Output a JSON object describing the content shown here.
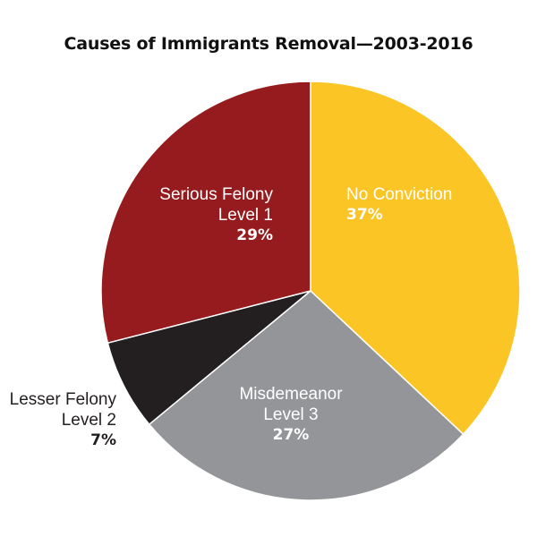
{
  "chart_data": {
    "type": "pie",
    "title": "Causes of Immigrants Removal—2003-2016",
    "slices": [
      {
        "label_lines": [
          "No Conviction"
        ],
        "value": 37,
        "value_label": "37%",
        "color": "#fcc526",
        "text_color": "#ffffff"
      },
      {
        "label_lines": [
          "Misdemeanor",
          "Level 3"
        ],
        "value": 27,
        "value_label": "27%",
        "color": "#939598",
        "text_color": "#ffffff"
      },
      {
        "label_lines": [
          "Lesser Felony",
          "Level 2"
        ],
        "value": 7,
        "value_label": "7%",
        "color": "#231f20",
        "text_color": "#231f20"
      },
      {
        "label_lines": [
          "Serious Felony",
          "Level 1"
        ],
        "value": 29,
        "value_label": "29%",
        "color": "#961b1e",
        "text_color": "#ffffff"
      }
    ]
  }
}
